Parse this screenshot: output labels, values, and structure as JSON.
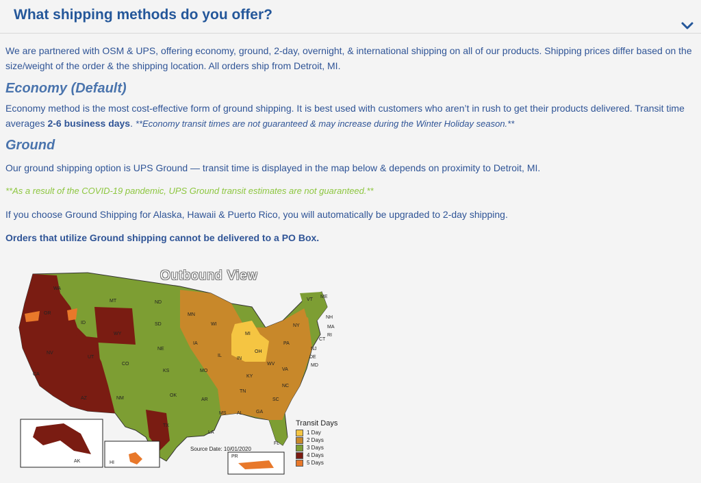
{
  "faq": {
    "question": "What shipping methods do you offer?",
    "intro": "We are partnered with OSM & UPS, offering economy, ground, 2-day, overnight, & international shipping on all of our products. Shipping prices differ based on the size/weight of the order & the shipping location. All orders ship from Detroit, MI.",
    "economy": {
      "heading": "Economy (Default)",
      "text_1": "Economy method is the most cost-effective form of ground shipping. It is best used with customers who aren’t in rush to get their products delivered. Transit time averages ",
      "days": "2-6 business days",
      "text_2": ". ",
      "note": "**Economy transit times are not guaranteed & may increase during the Winter Holiday season.**"
    },
    "ground": {
      "heading": "Ground",
      "text": "Our ground shipping option is UPS Ground — transit time is displayed in the map below & depends on proximity to Detroit, MI.",
      "covid_note": "**As a result of the COVID-19 pandemic, UPS Ground transit estimates are not guaranteed.**",
      "upgrade_text": "If you choose Ground Shipping for Alaska, Hawaii & Puerto Rico, you will automatically be upgraded to 2-day shipping.",
      "po_box_text": "Orders that utilize Ground shipping cannot be delivered to a PO Box."
    }
  },
  "map": {
    "title": "Outbound View",
    "source_date": "Source Date: 10/01/2020",
    "legend_title": "Transit Days",
    "legend": [
      {
        "label": "1 Day",
        "color": "#f5c542"
      },
      {
        "label": "2 Days",
        "color": "#c8882a"
      },
      {
        "label": "3 Days",
        "color": "#7d9e33"
      },
      {
        "label": "4 Days",
        "color": "#7a1c12"
      },
      {
        "label": "5 Days",
        "color": "#e8782a"
      }
    ],
    "states": [
      "WA",
      "OR",
      "ID",
      "MT",
      "WY",
      "NV",
      "UT",
      "CO",
      "CA",
      "AZ",
      "NM",
      "ND",
      "SD",
      "NE",
      "KS",
      "OK",
      "TX",
      "MN",
      "IA",
      "MO",
      "AR",
      "LA",
      "WI",
      "IL",
      "MI",
      "IN",
      "OH",
      "KY",
      "TN",
      "MS",
      "AL",
      "GA",
      "FL",
      "SC",
      "NC",
      "VA",
      "WV",
      "PA",
      "NY",
      "VT",
      "NH",
      "ME",
      "MA",
      "RI",
      "CT",
      "NJ",
      "DE",
      "MD"
    ],
    "insets": [
      "AK",
      "HI",
      "PR"
    ]
  },
  "icons": {
    "chevron": "chevron-down-icon"
  }
}
